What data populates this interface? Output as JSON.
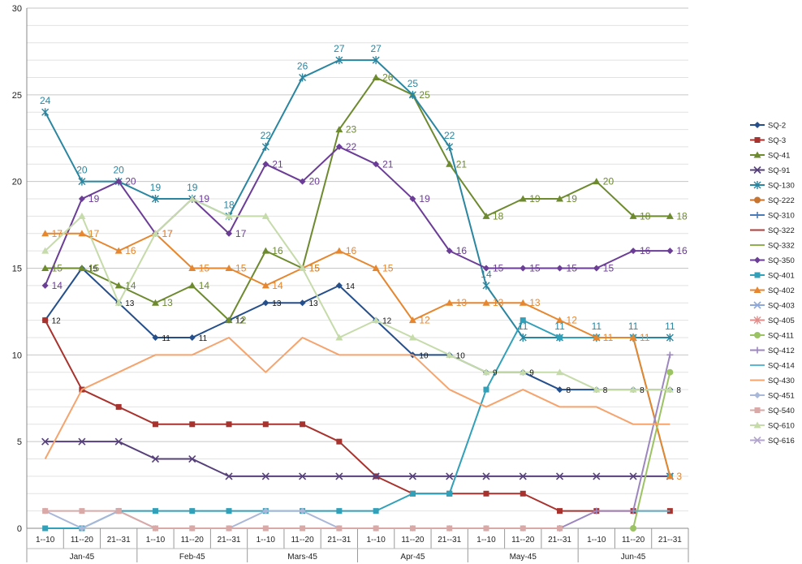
{
  "chart_data": {
    "type": "line",
    "title": "",
    "xlabel": "",
    "ylabel": "",
    "ylim": [
      0,
      30
    ],
    "yticks": [
      "0",
      "5",
      "10",
      "15",
      "20",
      "25",
      "30"
    ],
    "x_groups": [
      "Jan-45",
      "Feb-45",
      "Mars-45",
      "Apr-45",
      "May-45",
      "Jun-45"
    ],
    "categories": [
      "1--10",
      "11--20",
      "21--31",
      "1--10",
      "11--20",
      "21--31",
      "1--10",
      "11--20",
      "21--31",
      "1--10",
      "11--20",
      "21--31",
      "1--10",
      "11--20",
      "21--31",
      "1--10",
      "11--20",
      "21--31"
    ],
    "series": [
      {
        "name": "SQ-2",
        "color": "#254f8b",
        "marker": "diamond",
        "labels": true,
        "values": [
          12,
          15,
          13,
          11,
          11,
          12,
          13,
          13,
          14,
          12,
          10,
          10,
          9,
          9,
          8,
          8,
          8,
          8
        ]
      },
      {
        "name": "SQ-3",
        "color": "#a8322d",
        "marker": "square",
        "labels": false,
        "values": [
          12,
          8,
          7,
          6,
          6,
          6,
          6,
          6,
          5,
          3,
          2,
          2,
          2,
          2,
          1,
          1,
          1,
          1
        ]
      },
      {
        "name": "SQ-41",
        "color": "#6d8a2f",
        "marker": "triangle",
        "labels": true,
        "values": [
          15,
          15,
          14,
          13,
          14,
          12,
          16,
          15,
          23,
          26,
          25,
          21,
          18,
          19,
          19,
          20,
          18,
          18
        ]
      },
      {
        "name": "SQ-91",
        "color": "#56407a",
        "marker": "x",
        "labels": false,
        "values": [
          5,
          5,
          5,
          4,
          4,
          3,
          3,
          3,
          3,
          3,
          3,
          3,
          3,
          3,
          3,
          3,
          3,
          3
        ]
      },
      {
        "name": "SQ-130",
        "color": "#2a86a0",
        "marker": "star",
        "labels": true,
        "values": [
          24,
          20,
          20,
          19,
          19,
          18,
          22,
          26,
          27,
          27,
          25,
          22,
          14,
          11,
          11,
          11,
          11,
          11
        ]
      },
      {
        "name": "SQ-222",
        "color": "#c8742e",
        "marker": "circle",
        "labels": false,
        "values": [
          null,
          null,
          null,
          null,
          null,
          null,
          null,
          null,
          null,
          null,
          null,
          null,
          null,
          null,
          null,
          null,
          null,
          null
        ]
      },
      {
        "name": "SQ-310",
        "color": "#4a7ab8",
        "marker": "plus",
        "labels": false,
        "values": [
          null,
          null,
          null,
          null,
          null,
          null,
          null,
          null,
          null,
          null,
          null,
          null,
          null,
          null,
          null,
          null,
          null,
          null
        ]
      },
      {
        "name": "SQ-322",
        "color": "#b33c37",
        "marker": "none",
        "labels": false,
        "values": [
          null,
          null,
          null,
          null,
          null,
          null,
          null,
          null,
          null,
          null,
          null,
          null,
          null,
          null,
          null,
          null,
          null,
          null
        ]
      },
      {
        "name": "SQ-332",
        "color": "#8fb04d",
        "marker": "none",
        "labels": false,
        "values": [
          null,
          null,
          null,
          null,
          null,
          null,
          null,
          null,
          null,
          null,
          null,
          null,
          null,
          null,
          null,
          null,
          null,
          null
        ]
      },
      {
        "name": "SQ-350",
        "color": "#6b3d96",
        "marker": "diamond",
        "labels": true,
        "values": [
          14,
          19,
          20,
          17,
          19,
          17,
          21,
          20,
          22,
          21,
          19,
          16,
          15,
          15,
          15,
          15,
          16,
          16
        ]
      },
      {
        "name": "SQ-401",
        "color": "#31a0b8",
        "marker": "square",
        "labels": false,
        "values": [
          0,
          0,
          1,
          1,
          1,
          1,
          1,
          1,
          1,
          1,
          2,
          2,
          8,
          12,
          11,
          11,
          11,
          3
        ]
      },
      {
        "name": "SQ-402",
        "color": "#e6862e",
        "marker": "triangle",
        "labels": true,
        "values": [
          17,
          17,
          16,
          17,
          15,
          15,
          14,
          15,
          16,
          15,
          12,
          13,
          13,
          13,
          12,
          11,
          11,
          3
        ]
      },
      {
        "name": "SQ-403",
        "color": "#8fa8d8",
        "marker": "x",
        "labels": false,
        "values": [
          null,
          null,
          null,
          null,
          null,
          null,
          null,
          null,
          null,
          null,
          null,
          null,
          null,
          null,
          null,
          null,
          null,
          null
        ]
      },
      {
        "name": "SQ-405",
        "color": "#e08e8c",
        "marker": "star",
        "labels": false,
        "values": [
          null,
          null,
          null,
          null,
          null,
          null,
          null,
          null,
          null,
          null,
          null,
          null,
          null,
          null,
          null,
          null,
          null,
          null
        ]
      },
      {
        "name": "SQ-411",
        "color": "#9bc363",
        "marker": "circle",
        "labels": false,
        "values": [
          null,
          null,
          null,
          null,
          null,
          null,
          null,
          null,
          null,
          null,
          null,
          null,
          null,
          null,
          null,
          null,
          0,
          9
        ]
      },
      {
        "name": "SQ-412",
        "color": "#9c86c0",
        "marker": "plus",
        "labels": false,
        "values": [
          null,
          null,
          null,
          null,
          null,
          null,
          null,
          null,
          null,
          null,
          null,
          null,
          null,
          null,
          0,
          1,
          1,
          10
        ]
      },
      {
        "name": "SQ-414",
        "color": "#5bb8d2",
        "marker": "none",
        "labels": false,
        "values": [
          null,
          null,
          null,
          null,
          null,
          null,
          null,
          null,
          null,
          null,
          null,
          null,
          null,
          null,
          null,
          null,
          1,
          1
        ]
      },
      {
        "name": "SQ-430",
        "color": "#f5a46e",
        "marker": "none",
        "labels": false,
        "values": [
          4,
          8,
          9,
          10,
          10,
          11,
          9,
          11,
          10,
          10,
          10,
          8,
          7,
          8,
          7,
          7,
          6,
          6
        ]
      },
      {
        "name": "SQ-451",
        "color": "#a9b7d8",
        "marker": "diamond",
        "labels": false,
        "values": [
          1,
          0,
          1,
          0,
          0,
          0,
          1,
          1,
          0,
          0,
          0,
          0,
          0,
          0,
          0,
          null,
          null,
          null
        ]
      },
      {
        "name": "SQ-540",
        "color": "#d9a9a7",
        "marker": "square",
        "labels": false,
        "values": [
          1,
          1,
          1,
          0,
          0,
          0,
          0,
          0,
          0,
          0,
          0,
          0,
          0,
          0,
          0,
          null,
          null,
          null
        ]
      },
      {
        "name": "SQ-610",
        "color": "#c6dbaa",
        "marker": "triangle",
        "labels": false,
        "values": [
          16,
          18,
          13,
          17,
          19,
          18,
          18,
          15,
          11,
          12,
          11,
          10,
          9,
          9,
          9,
          8,
          8,
          8
        ]
      },
      {
        "name": "SQ-616",
        "color": "#b3a6cc",
        "marker": "x",
        "labels": false,
        "values": [
          null,
          null,
          null,
          null,
          null,
          null,
          null,
          null,
          null,
          null,
          null,
          null,
          null,
          null,
          null,
          null,
          null,
          null
        ]
      }
    ]
  }
}
